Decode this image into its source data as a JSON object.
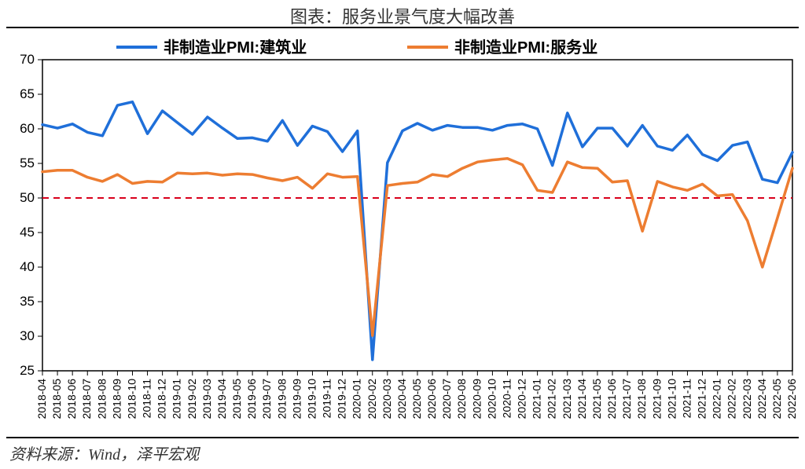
{
  "title": "图表：服务业景气度大幅改善",
  "source": "资料来源：Wind，泽平宏观",
  "chart": {
    "type": "line",
    "background_color": "#ffffff",
    "border_color": "#000000",
    "border_width": 1.5,
    "ylim": [
      25,
      70
    ],
    "ytick_step": 5,
    "yticks": [
      25,
      30,
      35,
      40,
      45,
      50,
      55,
      60,
      65,
      70
    ],
    "ytick_fontsize": 17,
    "xtick_fontsize": 14,
    "xtick_rotation": -90,
    "x_labels": [
      "2018-04",
      "2018-05",
      "2018-06",
      "2018-07",
      "2018-08",
      "2018-09",
      "2018-10",
      "2018-11",
      "2018-12",
      "2019-01",
      "2019-02",
      "2019-03",
      "2019-04",
      "2019-05",
      "2019-06",
      "2019-07",
      "2019-08",
      "2019-09",
      "2019-10",
      "2019-11",
      "2019-12",
      "2020-01",
      "2020-02",
      "2020-03",
      "2020-04",
      "2020-05",
      "2020-06",
      "2020-07",
      "2020-08",
      "2020-09",
      "2020-10",
      "2020-11",
      "2020-12",
      "2021-01",
      "2021-02",
      "2021-03",
      "2021-04",
      "2021-05",
      "2021-06",
      "2021-07",
      "2021-08",
      "2021-09",
      "2021-10",
      "2021-11",
      "2021-12",
      "2022-01",
      "2022-02",
      "2022-03",
      "2022-04",
      "2022-05",
      "2022-06"
    ],
    "reference_line": {
      "value": 50,
      "color": "#d9001b",
      "dash": "8,6",
      "width": 2
    },
    "series": [
      {
        "name": "非制造业PMI:建筑业",
        "color": "#1f6fd9",
        "width": 3.5,
        "values": [
          60.6,
          60.1,
          60.7,
          59.5,
          59.0,
          63.4,
          63.9,
          59.3,
          62.6,
          60.9,
          59.2,
          61.7,
          60.1,
          58.6,
          58.7,
          58.2,
          61.2,
          57.6,
          60.4,
          59.6,
          56.7,
          59.7,
          26.6,
          55.1,
          59.7,
          60.8,
          59.8,
          60.5,
          60.2,
          60.2,
          59.8,
          60.5,
          60.7,
          60.0,
          54.7,
          62.3,
          57.4,
          60.1,
          60.1,
          57.5,
          60.5,
          57.5,
          56.9,
          59.1,
          56.3,
          55.4,
          57.6,
          58.1,
          52.7,
          52.2,
          56.6
        ]
      },
      {
        "name": "非制造业PMI:服务业",
        "color": "#ed7d31",
        "width": 3.5,
        "values": [
          53.8,
          54.0,
          54.0,
          53.0,
          52.4,
          53.4,
          52.1,
          52.4,
          52.3,
          53.6,
          53.5,
          53.6,
          53.3,
          53.5,
          53.4,
          52.9,
          52.5,
          53.0,
          51.4,
          53.5,
          53.0,
          53.1,
          30.1,
          51.8,
          52.1,
          52.3,
          53.4,
          53.1,
          54.3,
          55.2,
          55.5,
          55.7,
          54.8,
          51.1,
          50.8,
          55.2,
          54.4,
          54.3,
          52.3,
          52.5,
          45.2,
          52.4,
          51.6,
          51.1,
          52.0,
          50.3,
          50.5,
          46.7,
          40.0,
          47.1,
          54.3
        ]
      }
    ],
    "legend": {
      "fontsize": 20,
      "font_weight": "bold",
      "items": [
        {
          "label": "非制造业PMI:建筑业",
          "color": "#1f6fd9"
        },
        {
          "label": "非制造业PMI:服务业",
          "color": "#ed7d31"
        }
      ]
    }
  }
}
